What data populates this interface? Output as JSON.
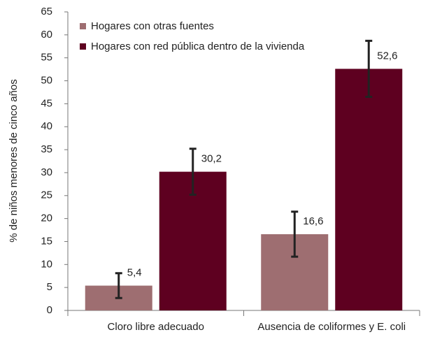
{
  "chart_data": {
    "type": "bar",
    "y_label": "% de niños menores de cinco años",
    "categories": [
      "Cloro libre adecuado",
      "Ausencia de coliformes y E. coli"
    ],
    "series": [
      {
        "name": "Hogares con otras fuentes",
        "color": "#9e6e71",
        "values": [
          5.4,
          16.6
        ],
        "value_labels": [
          "5,4",
          "16,6"
        ],
        "errors": [
          2.7,
          4.9
        ]
      },
      {
        "name": "Hogares con red pública dentro de la vivienda",
        "color": "#5e0020",
        "values": [
          30.2,
          52.6
        ],
        "value_labels": [
          "30,2",
          "52,6"
        ],
        "errors": [
          5.0,
          6.1
        ]
      }
    ],
    "ylim": [
      0,
      65
    ],
    "yticks": [
      0,
      5,
      10,
      15,
      20,
      25,
      30,
      35,
      40,
      45,
      50,
      55,
      60,
      65
    ],
    "legend": "top-left"
  }
}
